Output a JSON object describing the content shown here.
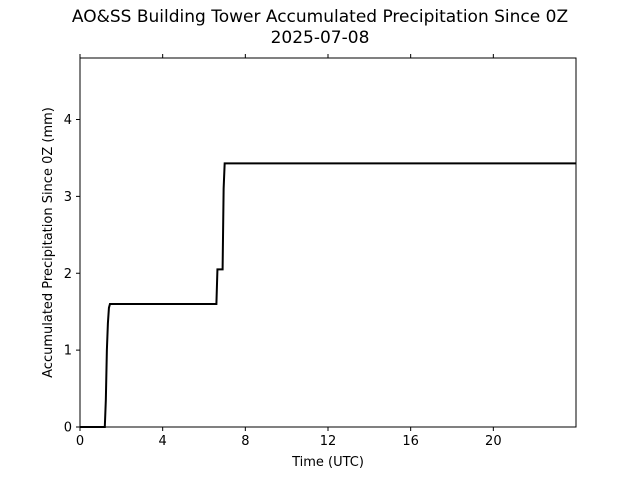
{
  "chart_data": {
    "type": "line",
    "title": "AO&SS Building Tower Accumulated Precipitation Since 0Z",
    "subtitle": "2025-07-08",
    "xlabel": "Time (UTC)",
    "ylabel": "Accumulated Precipitation Since 0Z (mm)",
    "xlim": [
      0,
      24
    ],
    "ylim": [
      0,
      4.8
    ],
    "x_ticks": [
      0,
      4,
      8,
      12,
      16,
      20
    ],
    "y_ticks": [
      0,
      1,
      2,
      3,
      4
    ],
    "grid": false,
    "line_color": "#000000",
    "series": [
      {
        "x": [
          0,
          1.2,
          1.25,
          1.3,
          1.35,
          1.4,
          1.45,
          1.5,
          6.6,
          6.65,
          6.9,
          6.95,
          7.0,
          24
        ],
        "y": [
          0,
          0,
          0.35,
          1.0,
          1.35,
          1.55,
          1.6,
          1.6,
          1.6,
          2.05,
          2.05,
          3.1,
          3.43,
          3.43
        ]
      }
    ]
  }
}
